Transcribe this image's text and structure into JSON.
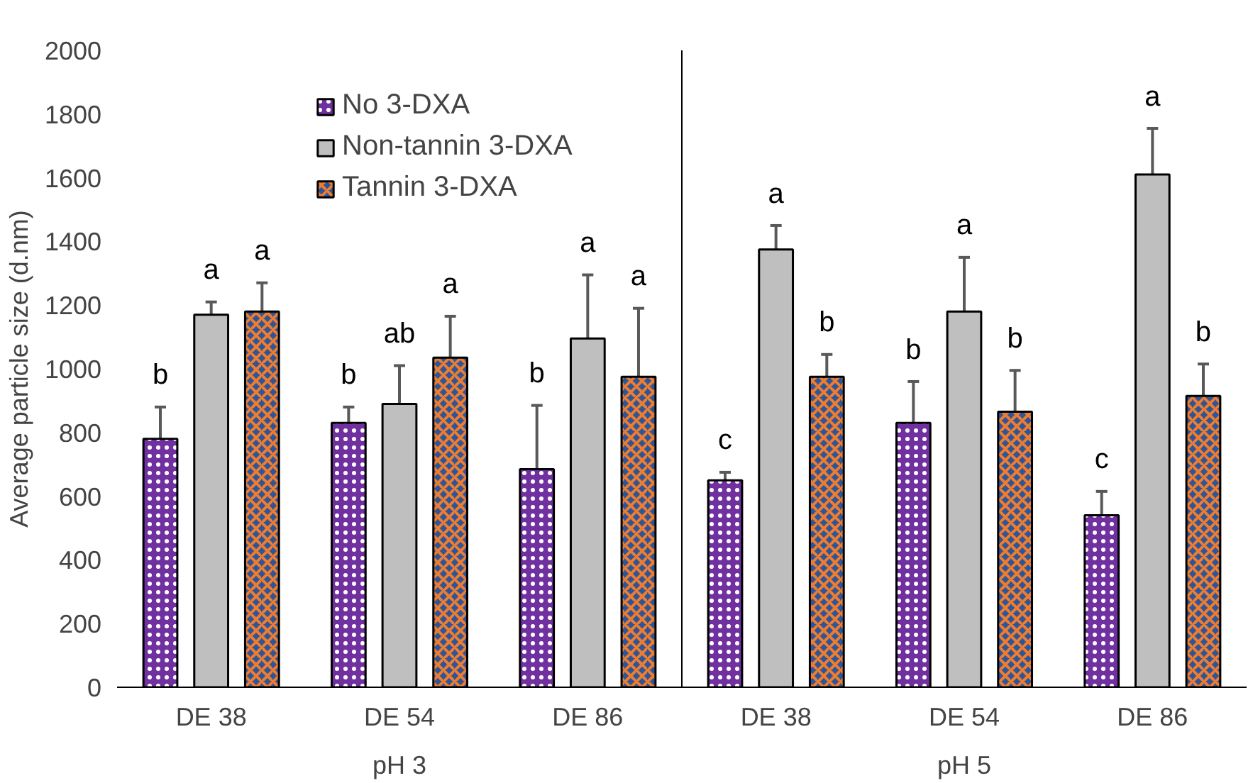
{
  "chart_data": {
    "type": "bar",
    "ylabel": "Average particle size (d.nm)",
    "categories": [
      "DE 38",
      "DE 54",
      "DE 86",
      "DE 38",
      "DE 54",
      "DE 86"
    ],
    "annotations": [
      "pH 3",
      "pH 5"
    ],
    "series": [
      {
        "name": "No 3-DXA",
        "color": "#7030a0",
        "values": [
          780,
          830,
          685,
          650,
          830,
          540
        ],
        "errors": [
          100,
          50,
          200,
          25,
          130,
          75
        ],
        "value_labels": [
          "b",
          "b",
          "b",
          "c",
          "b",
          "c"
        ]
      },
      {
        "name": "Non-tannin 3-DXA",
        "color": "#bfbfbf",
        "values": [
          1170,
          890,
          1095,
          1375,
          1180,
          1610
        ],
        "errors": [
          40,
          120,
          200,
          75,
          170,
          145
        ],
        "value_labels": [
          "a",
          "ab",
          "a",
          "a",
          "a",
          "a"
        ]
      },
      {
        "name": "Tannin 3-DXA",
        "color": "#2f5597",
        "values": [
          1180,
          1035,
          975,
          975,
          865,
          915
        ],
        "errors": [
          90,
          130,
          215,
          70,
          130,
          100
        ],
        "value_labels": [
          "a",
          "a",
          "a",
          "b",
          "b",
          "b"
        ]
      }
    ],
    "ylim": [
      0,
      2000
    ],
    "yticks": [
      0,
      200,
      400,
      600,
      800,
      1000,
      1200,
      1400,
      1600,
      1800,
      2000
    ],
    "grid": false,
    "legend": "top"
  }
}
